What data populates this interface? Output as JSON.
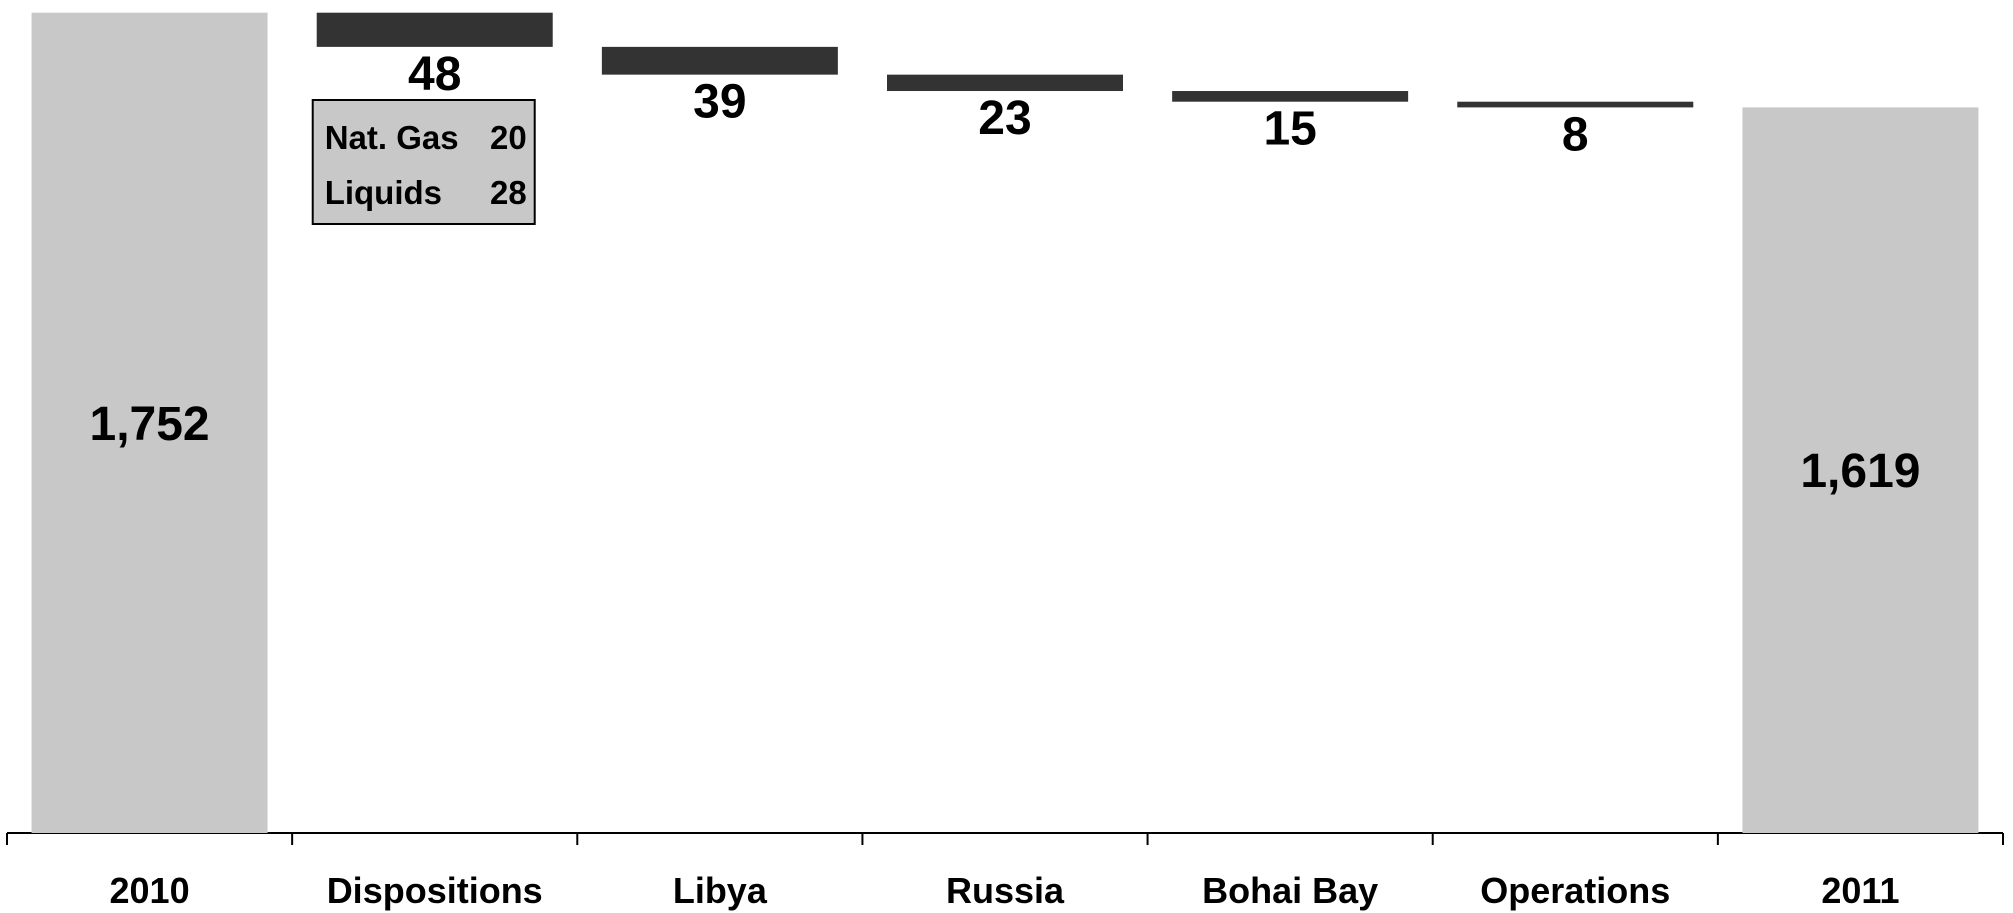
{
  "chart_data": {
    "type": "bar",
    "subtype": "waterfall",
    "title": "",
    "xlabel": "",
    "ylabel": "",
    "ylim": [
      600,
      1760
    ],
    "categories": [
      "2010",
      "Dispositions",
      "Libya",
      "Russia",
      "Bohai Bay",
      "Operations",
      "2011"
    ],
    "steps": [
      {
        "category": "2010",
        "kind": "total",
        "value": 1752,
        "label": "1,752"
      },
      {
        "category": "Dispositions",
        "kind": "decrease",
        "value": 48,
        "label": "48"
      },
      {
        "category": "Libya",
        "kind": "decrease",
        "value": 39,
        "label": "39"
      },
      {
        "category": "Russia",
        "kind": "decrease",
        "value": 23,
        "label": "23"
      },
      {
        "category": "Bohai Bay",
        "kind": "decrease",
        "value": 15,
        "label": "15"
      },
      {
        "category": "Operations",
        "kind": "decrease",
        "value": 8,
        "label": "8"
      },
      {
        "category": "2011",
        "kind": "total",
        "value": 1619,
        "label": "1,619"
      }
    ],
    "annotation": {
      "category": "Dispositions",
      "rows": [
        {
          "label": "Nat. Gas",
          "value": "20"
        },
        {
          "label": "Liquids",
          "value": "28"
        }
      ]
    },
    "colors": {
      "total": "#c8c8c8",
      "decrease": "#333333",
      "annotation_fill": "#c8c8c8",
      "axis": "#000000"
    },
    "grid": false,
    "legend": "none"
  }
}
